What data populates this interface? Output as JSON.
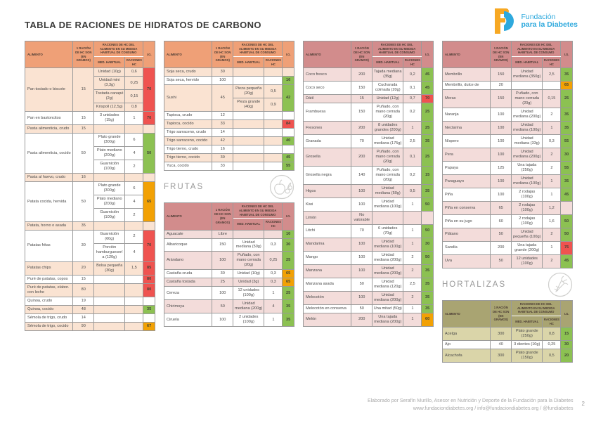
{
  "page": {
    "title": "TABLA DE RACIONES DE HIDRATOS DE CARBONO",
    "footer_line1": "Elaborado por Serafín Murillo, Asesor en Nutrición y Deporte de la Fundación para la Diabetes",
    "footer_line2": "www.fundaciondiabetes.org / info@fundaciondiabetes.org / @fundiabetes",
    "page_number": "2"
  },
  "logo": {
    "line1": "Fundación",
    "line2": "para la Diabetes",
    "orange": "#F7A823",
    "blue": "#2EA9DD"
  },
  "sections": {
    "frutas": {
      "title": "FRUTAS"
    },
    "hortalizas": {
      "title": "HORTALIZAS"
    }
  },
  "table_headers": {
    "alimento": "ALIMENTO",
    "racion": "1 RACIÓN DE HC SON (EN GRAMOS)",
    "raciones": "RACIONES DE HC DEL ALIMENTO EN SU MEDIDA HABITUAL DE CONSUMO",
    "med": "MED. HABITUAL",
    "rac_hc": "RACIONES HC",
    "ig": "I.G."
  },
  "themes": {
    "orange": {
      "header": "#EFA077",
      "shade": "#FAE3D2"
    },
    "pink": {
      "header": "#D28C8C",
      "shade": "#F3DCDA"
    },
    "olive": {
      "header": "#A9A472",
      "shade": "#DAD5A9"
    }
  },
  "ig_colors": {
    "green": "#8CC152",
    "orange": "#F2A104",
    "red": "#EF5350"
  },
  "tables": {
    "cereales_col1": {
      "theme": "orange",
      "rows": [
        {
          "alimento": "Pan tostado o biscote",
          "racion": "15",
          "medidas": [
            {
              "med": "Unidad (10g)",
              "hc": "0,6"
            },
            {
              "med": "Unidad mini (3,3g)",
              "hc": "0,25"
            },
            {
              "med": "Tostada canapé (2g)",
              "hc": "0,15"
            },
            {
              "med": "Krispoll (12,5g)",
              "hc": "0,8"
            }
          ],
          "ig": "70",
          "ig_level": "red"
        },
        {
          "alimento": "Pan en bastoncitos",
          "racion": "15",
          "medidas": [
            {
              "med": "3 unidades (15g)",
              "hc": "1"
            }
          ],
          "ig": "70",
          "ig_level": "red"
        },
        {
          "alimento": "Pasta alimenticia, crudo",
          "racion": "15",
          "medidas": [],
          "ig": "",
          "ig_level": null
        },
        {
          "alimento": "Pasta alimenticia, cocido",
          "racion": "50",
          "medidas": [
            {
              "med": "Plato grande (300g)",
              "hc": "6"
            },
            {
              "med": "Plato mediano (200g)",
              "hc": "4"
            },
            {
              "med": "Guarnición (100g)",
              "hc": "2"
            }
          ],
          "ig": "50",
          "ig_level": "green"
        },
        {
          "alimento": "Pasta al huevo, crudo",
          "racion": "16",
          "medidas": [],
          "ig": "",
          "ig_level": null
        },
        {
          "alimento": "Patata cocida, hervida",
          "racion": "50",
          "medidas": [
            {
              "med": "Plato grande (300g)",
              "hc": "6"
            },
            {
              "med": "Plato mediano (200g)",
              "hc": "4"
            },
            {
              "med": "Guarnición (100g)",
              "hc": "2"
            }
          ],
          "ig": "65",
          "ig_level": "orange"
        },
        {
          "alimento": "Patata, horno o asada",
          "racion": "35",
          "medidas": [],
          "ig": "",
          "ig_level": null
        },
        {
          "alimento": "Patatas fritas",
          "racion": "30",
          "medidas": [
            {
              "med": "Guarnición (60g)",
              "hc": "2"
            },
            {
              "med": "Porción hamburguesería (120g)",
              "hc": "4"
            }
          ],
          "ig": "70",
          "ig_level": "red"
        },
        {
          "alimento": "Patatas chips",
          "racion": "20",
          "medidas": [
            {
              "med": "Bolsa pequeña (30g)",
              "hc": "1,5"
            }
          ],
          "ig": "85",
          "ig_level": "red"
        },
        {
          "alimento": "Puré de patatas, copos",
          "racion": "15",
          "medidas": [],
          "ig": "80",
          "ig_level": "red"
        },
        {
          "alimento": "Puré de patatas, elabor. con leche",
          "racion": "80",
          "medidas": [],
          "ig": "80",
          "ig_level": "red"
        },
        {
          "alimento": "Quinoa, crudo",
          "racion": "19",
          "medidas": [],
          "ig": "",
          "ig_level": null
        },
        {
          "alimento": "Quinoa, cocido",
          "racion": "48",
          "medidas": [],
          "ig": "35",
          "ig_level": "green"
        },
        {
          "alimento": "Sémola de trigo, crudo",
          "racion": "14",
          "medidas": [],
          "ig": "",
          "ig_level": null
        },
        {
          "alimento": "Sémola de trigo, cocido",
          "racion": "90",
          "medidas": [],
          "ig": "67",
          "ig_level": "orange"
        }
      ]
    },
    "cereales_col2": {
      "theme": "orange",
      "rows": [
        {
          "alimento": "Soja seca, crudo",
          "racion": "30",
          "medidas": [],
          "ig": "",
          "ig_level": null
        },
        {
          "alimento": "Soja seca, hervido",
          "racion": "100",
          "medidas": [],
          "ig": "16",
          "ig_level": "green"
        },
        {
          "alimento": "Sushi",
          "racion": "45",
          "medidas": [
            {
              "med": "Pieza pequeña (20g)",
              "hc": "0,5"
            },
            {
              "med": "Pieza grande (40g)",
              "hc": "0,9"
            }
          ],
          "ig": "42",
          "ig_level": "green"
        },
        {
          "alimento": "Tapioca, crudo",
          "racion": "12",
          "medidas": [],
          "ig": "",
          "ig_level": null
        },
        {
          "alimento": "Tapioca, cocido",
          "racion": "33",
          "medidas": [],
          "ig": "84",
          "ig_level": "red"
        },
        {
          "alimento": "Trigo sarraceno, crudo",
          "racion": "14",
          "medidas": [],
          "ig": "",
          "ig_level": null
        },
        {
          "alimento": "Trigo sarraceno, cocido",
          "racion": "42",
          "medidas": [],
          "ig": "40",
          "ig_level": "green"
        },
        {
          "alimento": "Trigo tierno, crudo",
          "racion": "16",
          "medidas": [],
          "ig": "",
          "ig_level": null
        },
        {
          "alimento": "Trigo tierno, cocido",
          "racion": "39",
          "medidas": [],
          "ig": "45",
          "ig_level": "green"
        },
        {
          "alimento": "Yuca, cocido",
          "racion": "33",
          "medidas": [],
          "ig": "55",
          "ig_level": "green"
        }
      ]
    },
    "frutas_col2": {
      "theme": "pink",
      "rows": [
        {
          "alimento": "Aguacate",
          "racion": "Libre",
          "medidas": [],
          "ig": "10",
          "ig_level": "green"
        },
        {
          "alimento": "Albaricoque",
          "racion": "150",
          "medidas": [
            {
              "med": "Unidad mediana (50g)",
              "hc": "0,3"
            }
          ],
          "ig": "30",
          "ig_level": "green"
        },
        {
          "alimento": "Arándano",
          "racion": "100",
          "medidas": [
            {
              "med": "Puñado, con mano cerrada (20g)",
              "hc": "0,25"
            }
          ],
          "ig": "25",
          "ig_level": "green"
        },
        {
          "alimento": "Castaña cruda",
          "racion": "30",
          "medidas": [
            {
              "med": "Unidad (10g)",
              "hc": "0,3"
            }
          ],
          "ig": "65",
          "ig_level": "orange"
        },
        {
          "alimento": "Castaña tostada",
          "racion": "25",
          "medidas": [
            {
              "med": "Unidad (3g)",
              "hc": "0,3"
            }
          ],
          "ig": "65",
          "ig_level": "orange"
        },
        {
          "alimento": "Cereza",
          "racion": "100",
          "medidas": [
            {
              "med": "12 unidades (100g)",
              "hc": "1"
            }
          ],
          "ig": "25",
          "ig_level": "green"
        },
        {
          "alimento": "Chirimoya",
          "racion": "50",
          "medidas": [
            {
              "med": "Unidad mediana (200g)",
              "hc": "4"
            }
          ],
          "ig": "35",
          "ig_level": "green"
        },
        {
          "alimento": "Ciruela",
          "racion": "100",
          "medidas": [
            {
              "med": "2 unidades (100g)",
              "hc": "1"
            }
          ],
          "ig": "35",
          "ig_level": "green"
        }
      ]
    },
    "frutas_col3": {
      "theme": "pink",
      "rows": [
        {
          "alimento": "Coco fresco",
          "racion": "200",
          "medidas": [
            {
              "med": "Tajada mediana (35g)",
              "hc": "0,2"
            }
          ],
          "ig": "45",
          "ig_level": "green"
        },
        {
          "alimento": "Coco seco",
          "racion": "150",
          "medidas": [
            {
              "med": "Cucharada colmada (20g)",
              "hc": "0,1"
            }
          ],
          "ig": "45",
          "ig_level": "green"
        },
        {
          "alimento": "Dátil",
          "racion": "15",
          "medidas": [
            {
              "med": "Unidad (12g)",
              "hc": "0,7"
            }
          ],
          "ig": "70",
          "ig_level": "red"
        },
        {
          "alimento": "Frambuesa",
          "racion": "150",
          "medidas": [
            {
              "med": "Puñado, con mano cerrada (20g)",
              "hc": "0,2"
            }
          ],
          "ig": "25",
          "ig_level": "green"
        },
        {
          "alimento": "Fresones",
          "racion": "200",
          "medidas": [
            {
              "med": "8 unidades grandes (200g)",
              "hc": "1"
            }
          ],
          "ig": "25",
          "ig_level": "green"
        },
        {
          "alimento": "Granada",
          "racion": "70",
          "medidas": [
            {
              "med": "Unidad mediana (175g)",
              "hc": "2,5"
            }
          ],
          "ig": "35",
          "ig_level": "green"
        },
        {
          "alimento": "Grosella",
          "racion": "200",
          "medidas": [
            {
              "med": "Puñado, con mano cerrada (20g)",
              "hc": "0,1"
            }
          ],
          "ig": "25",
          "ig_level": "green"
        },
        {
          "alimento": "Grosella negra",
          "racion": "140",
          "medidas": [
            {
              "med": "Puñado, con mano cerrada (20g)",
              "hc": "0,2"
            }
          ],
          "ig": "15",
          "ig_level": "green"
        },
        {
          "alimento": "Higos",
          "racion": "100",
          "medidas": [
            {
              "med": "Unidad mediana (50g)",
              "hc": "0,5"
            }
          ],
          "ig": "35",
          "ig_level": "green"
        },
        {
          "alimento": "Kiwi",
          "racion": "100",
          "medidas": [
            {
              "med": "Unidad mediana (100g)",
              "hc": "1"
            }
          ],
          "ig": "50",
          "ig_level": "green"
        },
        {
          "alimento": "Limón",
          "racion": "No valorable",
          "medidas": [],
          "ig": "",
          "ig_level": null
        },
        {
          "alimento": "Litchi",
          "racion": "70",
          "medidas": [
            {
              "med": "6 unidades (70g)",
              "hc": "1"
            }
          ],
          "ig": "50",
          "ig_level": "green"
        },
        {
          "alimento": "Mandarina",
          "racion": "100",
          "medidas": [
            {
              "med": "Unidad mediana (100g)",
              "hc": "1"
            }
          ],
          "ig": "30",
          "ig_level": "green"
        },
        {
          "alimento": "Mango",
          "racion": "100",
          "medidas": [
            {
              "med": "Unidad mediana (200g)",
              "hc": "2"
            }
          ],
          "ig": "50",
          "ig_level": "green"
        },
        {
          "alimento": "Manzana",
          "racion": "100",
          "medidas": [
            {
              "med": "Unidad mediana (200g)",
              "hc": "2"
            }
          ],
          "ig": "35",
          "ig_level": "green"
        },
        {
          "alimento": "Manzana asada",
          "racion": "50",
          "medidas": [
            {
              "med": "Unidad mediana (120g)",
              "hc": "2,5"
            }
          ],
          "ig": "35",
          "ig_level": "green"
        },
        {
          "alimento": "Melocotón",
          "racion": "100",
          "medidas": [
            {
              "med": "Unidad mediana (200g)",
              "hc": "2"
            }
          ],
          "ig": "35",
          "ig_level": "green"
        },
        {
          "alimento": "Melocotón en conserva",
          "racion": "50",
          "medidas": [
            {
              "med": "Una mitad (50g)",
              "hc": "1"
            }
          ],
          "ig": "35",
          "ig_level": "green"
        },
        {
          "alimento": "Melón",
          "racion": "200",
          "medidas": [
            {
              "med": "Una tajada mediana (200g)",
              "hc": "1"
            }
          ],
          "ig": "60",
          "ig_level": "orange"
        }
      ]
    },
    "frutas_col4": {
      "theme": "pink",
      "rows": [
        {
          "alimento": "Membrillo",
          "racion": "150",
          "medidas": [
            {
              "med": "Unidad mediana (350g)",
              "hc": "2,5"
            }
          ],
          "ig": "35",
          "ig_level": "green"
        },
        {
          "alimento": "Membrillo, dulce de",
          "racion": "20",
          "medidas": [],
          "ig": "65",
          "ig_level": "orange"
        },
        {
          "alimento": "Moras",
          "racion": "150",
          "medidas": [
            {
              "med": "Puñado, con mano cerrada (20g)",
              "hc": "0,15"
            }
          ],
          "ig": "25",
          "ig_level": "green"
        },
        {
          "alimento": "Naranja",
          "racion": "100",
          "medidas": [
            {
              "med": "Unidad mediana (200g)",
              "hc": "2"
            }
          ],
          "ig": "35",
          "ig_level": "green"
        },
        {
          "alimento": "Nectarina",
          "racion": "100",
          "medidas": [
            {
              "med": "Unidad mediana (100g)",
              "hc": "1"
            }
          ],
          "ig": "35",
          "ig_level": "green"
        },
        {
          "alimento": "Níspero",
          "racion": "100",
          "medidas": [
            {
              "med": "Unidad mediana (33g)",
              "hc": "0,3"
            }
          ],
          "ig": "55",
          "ig_level": "green"
        },
        {
          "alimento": "Pera",
          "racion": "100",
          "medidas": [
            {
              "med": "Unidad mediana (200g)",
              "hc": "2"
            }
          ],
          "ig": "30",
          "ig_level": "green"
        },
        {
          "alimento": "Papaya",
          "racion": "125",
          "medidas": [
            {
              "med": "Una tajada (250g)",
              "hc": "2"
            }
          ],
          "ig": "55",
          "ig_level": "green"
        },
        {
          "alimento": "Paraguayo",
          "racion": "100",
          "medidas": [
            {
              "med": "Unidad mediana (100g)",
              "hc": "1"
            }
          ],
          "ig": "35",
          "ig_level": "green"
        },
        {
          "alimento": "Piña",
          "racion": "100",
          "medidas": [
            {
              "med": "2 rodajas (100g)",
              "hc": "1"
            }
          ],
          "ig": "45",
          "ig_level": "green"
        },
        {
          "alimento": "Piña en conserva",
          "racion": "65",
          "medidas": [
            {
              "med": "2 rodajas (100g)",
              "hc": "1,2"
            }
          ],
          "ig": "",
          "ig_level": null
        },
        {
          "alimento": "Piña en su jugo",
          "racion": "60",
          "medidas": [
            {
              "med": "2 rodajas (100g)",
              "hc": "1,6"
            }
          ],
          "ig": "50",
          "ig_level": "green"
        },
        {
          "alimento": "Plátano",
          "racion": "50",
          "medidas": [
            {
              "med": "Unidad pequeña (100g)",
              "hc": "2"
            }
          ],
          "ig": "50",
          "ig_level": "green"
        },
        {
          "alimento": "Sandía",
          "racion": "200",
          "medidas": [
            {
              "med": "Una tajada grande (200g)",
              "hc": "1"
            }
          ],
          "ig": "75",
          "ig_level": "red"
        },
        {
          "alimento": "Uva",
          "racion": "50",
          "medidas": [
            {
              "med": "12 unidades (100g)",
              "hc": "2"
            }
          ],
          "ig": "45",
          "ig_level": "green"
        }
      ]
    },
    "hortalizas": {
      "theme": "olive",
      "rows": [
        {
          "alimento": "Acelga",
          "racion": "300",
          "medidas": [
            {
              "med": "Plato grande (250g)",
              "hc": "0,8"
            }
          ],
          "ig": "15",
          "ig_level": "green"
        },
        {
          "alimento": "Ajo",
          "racion": "40",
          "medidas": [
            {
              "med": "3 dientes (10g)",
              "hc": "0,25"
            }
          ],
          "ig": "30",
          "ig_level": "green"
        },
        {
          "alimento": "Alcachofa",
          "racion": "300",
          "medidas": [
            {
              "med": "Plato grande (150g)",
              "hc": "0,5"
            }
          ],
          "ig": "20",
          "ig_level": "green"
        }
      ]
    }
  }
}
